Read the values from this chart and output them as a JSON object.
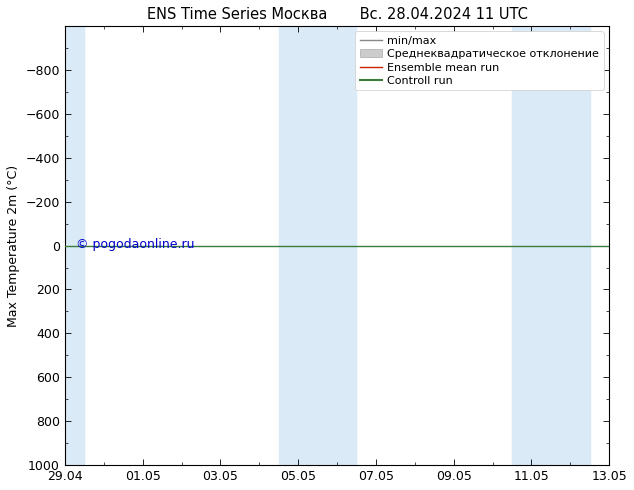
{
  "title": "ENS Time Series Москва       Вс. 28.04.2024 11 UTC",
  "ylabel": "Max Temperature 2m (°C)",
  "ylim_bottom": 1000,
  "ylim_top": -1000,
  "yticks": [
    -800,
    -600,
    -400,
    -200,
    0,
    200,
    400,
    600,
    800,
    1000
  ],
  "xtick_labels": [
    "29.04",
    "01.05",
    "03.05",
    "05.05",
    "07.05",
    "09.05",
    "11.05",
    "13.05"
  ],
  "xtick_positions": [
    0,
    2,
    4,
    6,
    8,
    10,
    12,
    14
  ],
  "xlim": [
    0,
    14
  ],
  "shaded_regions": [
    [
      0,
      0.5
    ],
    [
      5.5,
      6.5
    ],
    [
      6.5,
      7.5
    ],
    [
      11.5,
      12.5
    ],
    [
      12.5,
      13.5
    ]
  ],
  "shaded_color": "#daeaf7",
  "line_color_green": "#3a7d3a",
  "watermark": "© pogodaonline.ru",
  "watermark_color": "#0000cc",
  "legend_labels": [
    "min/max",
    "Среднеквадратическое отклонение",
    "Ensemble mean run",
    "Controll run"
  ],
  "legend_line_colors": [
    "#888888",
    "#cccccc",
    "#cc2200",
    "#3a7d3a"
  ],
  "background_color": "#ffffff",
  "title_fontsize": 10.5,
  "axis_label_fontsize": 9,
  "tick_fontsize": 9,
  "legend_fontsize": 8
}
